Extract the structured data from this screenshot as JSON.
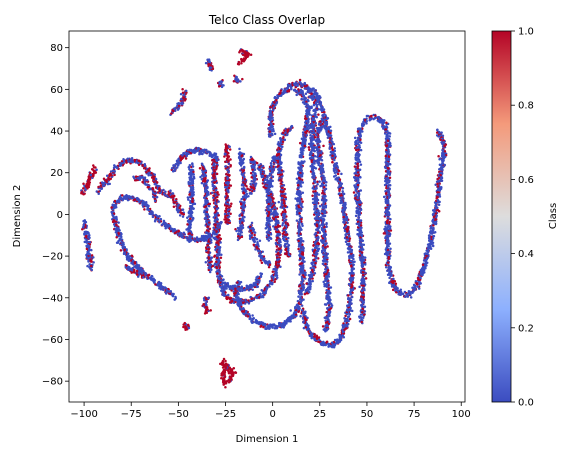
{
  "chart_data": {
    "type": "scatter",
    "title": "Telco Class Overlap",
    "xlabel": "Dimension 1",
    "ylabel": "Dimension 2",
    "xlim": [
      -108,
      102
    ],
    "ylim": [
      -90,
      88
    ],
    "xticks": [
      -100,
      -75,
      -50,
      -25,
      0,
      25,
      50,
      75,
      100
    ],
    "yticks": [
      -80,
      -60,
      -40,
      -20,
      0,
      20,
      40,
      60,
      80
    ],
    "grid": false,
    "colorbar": {
      "label": "Class",
      "range": [
        0,
        1
      ],
      "ticks": [
        "0.0",
        "0.2",
        "0.4",
        "0.6",
        "0.8",
        "1.0"
      ],
      "colormap": "coolwarm",
      "low_color": "#3b4cc0",
      "mid_color": "#dddddd",
      "high_color": "#b40426"
    },
    "clusters": [
      {
        "class_1_share": 0.3,
        "path": [
          [
            -100,
            -3
          ],
          [
            -98,
            -13
          ],
          [
            -97,
            -22
          ],
          [
            -96,
            -26
          ]
        ]
      },
      {
        "class_1_share": 0.8,
        "path": [
          [
            -101,
            10
          ],
          [
            -98,
            15
          ],
          [
            -96,
            19
          ],
          [
            -94,
            22
          ]
        ]
      },
      {
        "class_1_share": 0.25,
        "path": [
          [
            -83,
            -5
          ],
          [
            -85,
            0
          ],
          [
            -84,
            5
          ],
          [
            -80,
            8
          ],
          [
            -74,
            8
          ],
          [
            -68,
            5
          ],
          [
            -64,
            1
          ],
          [
            -60,
            -3
          ],
          [
            -55,
            -6
          ],
          [
            -50,
            -9
          ],
          [
            -46,
            -11
          ],
          [
            -42,
            -12
          ],
          [
            -38,
            -12
          ],
          [
            -33,
            -11
          ],
          [
            -30,
            -8
          ],
          [
            -28,
            -4
          ]
        ]
      },
      {
        "class_1_share": 0.2,
        "path": [
          [
            -83,
            -5
          ],
          [
            -81,
            -12
          ],
          [
            -77,
            -20
          ],
          [
            -72,
            -25
          ],
          [
            -66,
            -30
          ],
          [
            -60,
            -34
          ],
          [
            -55,
            -37
          ],
          [
            -52,
            -40
          ]
        ]
      },
      {
        "class_1_share": 0.45,
        "path": [
          [
            -93,
            11
          ],
          [
            -88,
            16
          ],
          [
            -82,
            23
          ],
          [
            -78,
            26
          ],
          [
            -72,
            26
          ],
          [
            -67,
            22
          ],
          [
            -63,
            17
          ],
          [
            -60,
            12
          ],
          [
            -57,
            9
          ],
          [
            -54,
            10
          ],
          [
            -52,
            7
          ],
          [
            -50,
            3
          ],
          [
            -47,
            0
          ]
        ]
      },
      {
        "class_1_share": 0.4,
        "path": [
          [
            -73,
            17
          ],
          [
            -69,
            18
          ],
          [
            -66,
            14
          ],
          [
            -63,
            11
          ],
          [
            -62,
            6
          ]
        ]
      },
      {
        "class_1_share": 0.15,
        "path": [
          [
            -44,
            -13
          ],
          [
            -44,
            -4
          ],
          [
            -43,
            6
          ],
          [
            -43,
            15
          ],
          [
            -43,
            24
          ]
        ]
      },
      {
        "class_1_share": 0.2,
        "path": [
          [
            -53,
            21
          ],
          [
            -50,
            25
          ],
          [
            -46,
            29
          ],
          [
            -40,
            31
          ],
          [
            -35,
            30
          ],
          [
            -31,
            28
          ],
          [
            -29,
            24
          ]
        ]
      },
      {
        "class_1_share": 0.3,
        "path": [
          [
            -37,
            24
          ],
          [
            -36,
            16
          ],
          [
            -35,
            8
          ],
          [
            -35,
            0
          ],
          [
            -34,
            -9
          ],
          [
            -34,
            -18
          ],
          [
            -33,
            -27
          ]
        ]
      },
      {
        "class_1_share": 0.4,
        "path": [
          [
            -31,
            26
          ],
          [
            -31,
            15
          ],
          [
            -30,
            5
          ],
          [
            -30,
            -5
          ],
          [
            -29,
            -16
          ],
          [
            -29,
            -24
          ],
          [
            -28,
            -31
          ],
          [
            -26,
            -38
          ],
          [
            -22,
            -41
          ],
          [
            -15,
            -42
          ],
          [
            -6,
            -39
          ],
          [
            0,
            -32
          ],
          [
            3,
            -23
          ],
          [
            3,
            -10
          ],
          [
            1,
            2
          ],
          [
            -3,
            14
          ],
          [
            -7,
            24
          ]
        ]
      },
      {
        "class_1_share": 0.15,
        "path": [
          [
            -26,
            -33
          ],
          [
            -22,
            -35
          ],
          [
            -15,
            -36
          ],
          [
            -9,
            -34
          ],
          [
            -6,
            -28
          ]
        ]
      },
      {
        "class_1_share": 0.55,
        "path": [
          [
            -24,
            33
          ],
          [
            -24,
            24
          ],
          [
            -24,
            13
          ],
          [
            -24,
            5
          ],
          [
            -24,
            -5
          ]
        ]
      },
      {
        "class_1_share": 0.2,
        "path": [
          [
            -17,
            30
          ],
          [
            -16,
            22
          ],
          [
            -15,
            15
          ],
          [
            -15,
            8
          ],
          [
            -16,
            0
          ],
          [
            -17,
            -6
          ],
          [
            -18,
            -12
          ]
        ]
      },
      {
        "class_1_share": 0.25,
        "path": [
          [
            -12,
            10
          ],
          [
            -10,
            15
          ],
          [
            -10,
            22
          ],
          [
            -11,
            27
          ]
        ]
      },
      {
        "class_1_share": 0.2,
        "path": [
          [
            -12,
            -5
          ],
          [
            -10,
            -12
          ],
          [
            -7,
            -18
          ],
          [
            -4,
            -23
          ],
          [
            -1,
            -24
          ]
        ]
      },
      {
        "class_1_share": 0.15,
        "path": [
          [
            -2,
            -12
          ],
          [
            -2,
            -4
          ],
          [
            -2,
            4
          ],
          [
            -2,
            12
          ],
          [
            -1,
            18
          ],
          [
            0,
            24
          ],
          [
            2,
            28
          ]
        ]
      },
      {
        "class_1_share": 0.4,
        "path": [
          [
            8,
            -20
          ],
          [
            7,
            -10
          ],
          [
            6,
            0
          ],
          [
            5,
            10
          ],
          [
            4,
            20
          ],
          [
            3,
            28
          ],
          [
            4,
            34
          ],
          [
            6,
            38
          ],
          [
            8,
            40
          ],
          [
            10,
            42
          ]
        ]
      },
      {
        "class_1_share": 0.2,
        "path": [
          [
            -18,
            -32
          ],
          [
            -20,
            -38
          ],
          [
            -17,
            -45
          ],
          [
            -10,
            -51
          ],
          [
            -2,
            -54
          ],
          [
            6,
            -53
          ],
          [
            12,
            -48
          ],
          [
            15,
            -40
          ],
          [
            16,
            -28
          ],
          [
            15,
            -15
          ],
          [
            14,
            -2
          ],
          [
            14,
            12
          ],
          [
            15,
            25
          ],
          [
            17,
            38
          ],
          [
            19,
            50
          ],
          [
            16,
            58
          ],
          [
            10,
            60
          ],
          [
            4,
            58
          ],
          [
            0,
            52
          ],
          [
            -1,
            44
          ],
          [
            -1,
            38
          ]
        ]
      },
      {
        "class_1_share": 0.25,
        "path": [
          [
            18,
            -38
          ],
          [
            21,
            -28
          ],
          [
            23,
            -18
          ],
          [
            24,
            -6
          ],
          [
            23,
            6
          ],
          [
            22,
            18
          ],
          [
            21,
            30
          ],
          [
            21,
            42
          ],
          [
            23,
            53
          ],
          [
            20,
            60
          ],
          [
            14,
            63
          ],
          [
            8,
            62
          ]
        ]
      },
      {
        "class_1_share": 0.2,
        "path": [
          [
            16,
            -45
          ],
          [
            17,
            -52
          ],
          [
            21,
            -58
          ],
          [
            26,
            -62
          ],
          [
            32,
            -63
          ],
          [
            37,
            -58
          ],
          [
            40,
            -48
          ],
          [
            42,
            -36
          ],
          [
            42,
            -24
          ],
          [
            40,
            -12
          ],
          [
            38,
            0
          ],
          [
            36,
            12
          ],
          [
            33,
            25
          ],
          [
            30,
            38
          ],
          [
            26,
            52
          ],
          [
            22,
            60
          ]
        ]
      },
      {
        "class_1_share": 0.25,
        "path": [
          [
            28,
            -56
          ],
          [
            30,
            -46
          ],
          [
            29,
            -34
          ],
          [
            28,
            -22
          ],
          [
            27,
            -10
          ],
          [
            27,
            2
          ],
          [
            27,
            14
          ],
          [
            25,
            26
          ],
          [
            24,
            38
          ],
          [
            26,
            45
          ]
        ]
      },
      {
        "class_1_share": 0.2,
        "path": [
          [
            47,
            -52
          ],
          [
            48,
            -40
          ],
          [
            48,
            -28
          ],
          [
            47,
            -16
          ],
          [
            46,
            -4
          ],
          [
            45,
            8
          ],
          [
            45,
            20
          ],
          [
            45,
            32
          ],
          [
            46,
            40
          ],
          [
            50,
            46
          ],
          [
            55,
            47
          ],
          [
            59,
            44
          ],
          [
            61,
            38
          ],
          [
            61,
            26
          ],
          [
            61,
            14
          ],
          [
            61,
            2
          ],
          [
            61,
            -10
          ],
          [
            61,
            -22
          ],
          [
            63,
            -32
          ],
          [
            67,
            -38
          ],
          [
            72,
            -39
          ],
          [
            76,
            -35
          ],
          [
            80,
            -26
          ],
          [
            83,
            -16
          ],
          [
            86,
            -2
          ],
          [
            88,
            12
          ],
          [
            90,
            24
          ],
          [
            91,
            32
          ],
          [
            89,
            38
          ],
          [
            87,
            40
          ]
        ]
      },
      {
        "class_1_share": 0.45,
        "path": [
          [
            -78,
            -25
          ],
          [
            -73,
            -27
          ],
          [
            -68,
            -30
          ]
        ]
      },
      {
        "class_1_share": 0.9,
        "path": [
          [
            -27,
            -71
          ],
          [
            -24,
            -73
          ],
          [
            -21,
            -76
          ],
          [
            -23,
            -80
          ],
          [
            -26,
            -81
          ],
          [
            -26,
            -76
          ],
          [
            -24,
            -72
          ]
        ]
      },
      {
        "class_1_share": 0.6,
        "path": [
          [
            -35,
            -40
          ],
          [
            -36,
            -44
          ],
          [
            -34,
            -47
          ]
        ]
      },
      {
        "class_1_share": 0.7,
        "path": [
          [
            -47,
            -53
          ],
          [
            -45,
            -55
          ]
        ]
      },
      {
        "class_1_share": 0.5,
        "path": [
          [
            -53,
            49
          ],
          [
            -50,
            52
          ],
          [
            -47,
            56
          ],
          [
            -46,
            60
          ]
        ]
      },
      {
        "class_1_share": 0.4,
        "path": [
          [
            -35,
            74
          ],
          [
            -33,
            72
          ],
          [
            -33,
            69
          ]
        ]
      },
      {
        "class_1_share": 0.45,
        "path": [
          [
            -20,
            66
          ],
          [
            -17,
            63
          ]
        ]
      },
      {
        "class_1_share": 0.95,
        "path": [
          [
            -17,
            79
          ],
          [
            -15,
            78
          ],
          [
            -13,
            77
          ],
          [
            -15,
            74
          ],
          [
            -17,
            73
          ]
        ]
      },
      {
        "class_1_share": 0.3,
        "path": [
          [
            -28,
            64
          ],
          [
            -27,
            61
          ]
        ]
      }
    ]
  }
}
